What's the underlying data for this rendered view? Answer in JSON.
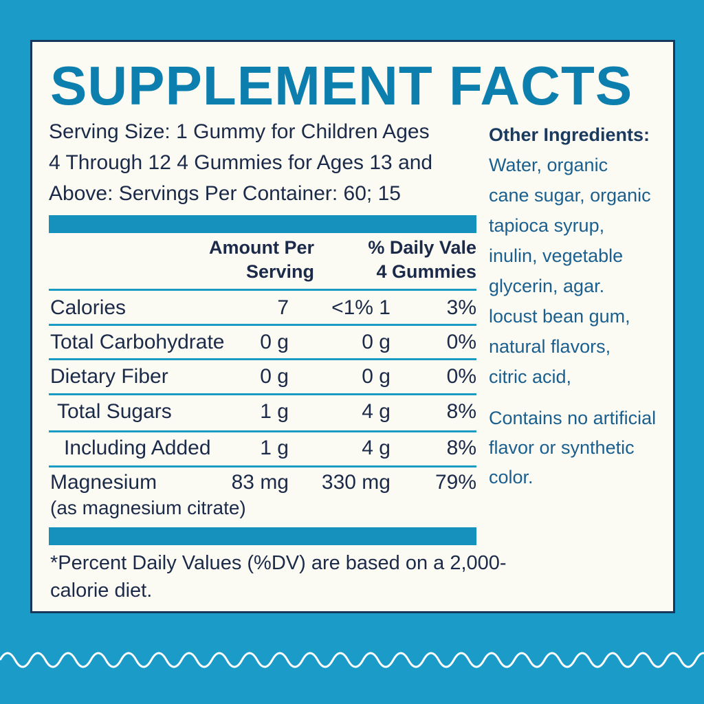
{
  "label": {
    "title": "SUPPLEMENT FACTS",
    "serving_lines": [
      "Serving Size: 1 Gummy for Children Ages",
      "4 Through 12  4 Gummies for Ages 13 and",
      "Above: Servings Per Container: 60; 15"
    ],
    "header": {
      "amount_lines": [
        "Amount Per",
        "Serving"
      ],
      "dv_lines": [
        "% Daily Vale",
        "4 Gummies"
      ]
    },
    "rows": [
      {
        "name": "Calories",
        "amount": "7",
        "col2": "<1% 1",
        "col3": "3%"
      },
      {
        "name": "Total Carbohydrate",
        "amount": "0 g",
        "col2": "0 g",
        "col3": "0%"
      },
      {
        "name": "Dietary Fiber",
        "amount": "0 g",
        "col2": "0 g",
        "col3": "0%"
      },
      {
        "name": "Total Sugars",
        "amount": "1 g",
        "col2": "4 g",
        "col3": "8%"
      },
      {
        "name": "Including Added",
        "amount": "1 g",
        "col2": "4 g",
        "col3": "8%"
      },
      {
        "name": "Magnesium",
        "sub": "(as magnesium citrate)",
        "amount": "83 mg",
        "col2": "330 mg",
        "col3": "79%"
      }
    ],
    "footnote_lines": [
      "*Percent Daily Values (%DV) are based on a 2,000-",
      "calorie diet."
    ],
    "other": {
      "title": "Other Ingredients:",
      "lines": [
        "Water, organic",
        "cane sugar, organic",
        "tapioca syrup,",
        "inulin, vegetable",
        "glycerin, agar.",
        "locust bean gum,",
        "natural flavors,",
        "citric acid,"
      ],
      "note_lines": [
        "Contains no artificial",
        "flavor or synthetic",
        "color."
      ]
    }
  }
}
